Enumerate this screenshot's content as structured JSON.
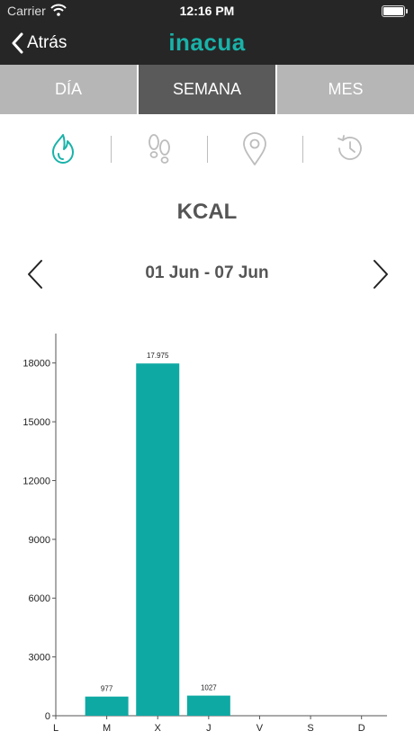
{
  "status_bar": {
    "carrier": "Carrier",
    "time": "12:16 PM"
  },
  "nav": {
    "back_label": "Atrás",
    "brand": "inacua"
  },
  "tabs": [
    {
      "label": "DÍA",
      "active": false
    },
    {
      "label": "SEMANA",
      "active": true
    },
    {
      "label": "MES",
      "active": false
    }
  ],
  "metric_icons": [
    "flame-icon",
    "footsteps-icon",
    "location-pin-icon",
    "history-icon"
  ],
  "colors": {
    "accent": "#19b2a9",
    "bar": "#0fa9a3",
    "header": "#262626",
    "tab_inactive": "#b6b6b6",
    "tab_active": "#5a5a5a"
  },
  "metric_title": "KCAL",
  "date_range": "01 Jun - 07 Jun",
  "chart_data": {
    "type": "bar",
    "categories": [
      "L",
      "M",
      "X",
      "J",
      "V",
      "S",
      "D"
    ],
    "values": [
      0,
      977,
      17975,
      1027,
      0,
      0,
      0
    ],
    "value_labels": [
      "",
      "977",
      "17.975",
      "1027",
      "",
      "",
      ""
    ],
    "yticks": [
      0,
      3000,
      6000,
      9000,
      12000,
      15000,
      18000
    ],
    "ylim": [
      0,
      19500
    ],
    "grid": false,
    "title": "",
    "xlabel": "",
    "ylabel": ""
  }
}
